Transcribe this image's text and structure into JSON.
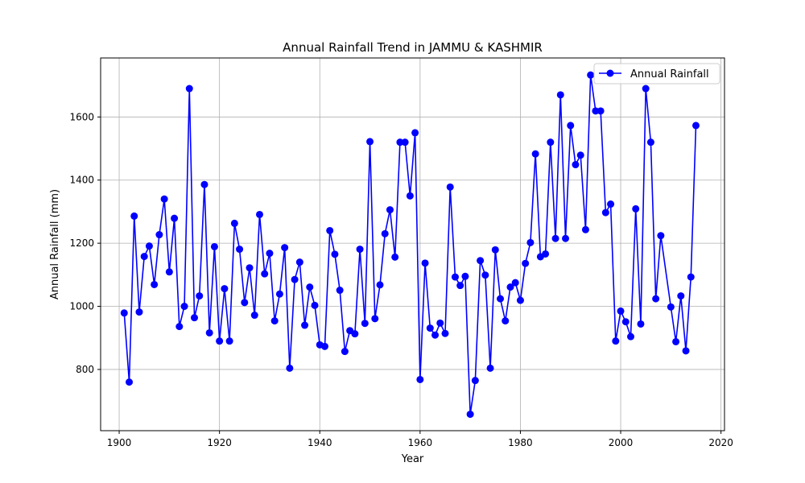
{
  "chart_data": {
    "type": "line",
    "title": "Annual Rainfall Trend in JAMMU & KASHMIR",
    "xlabel": "Year",
    "ylabel": "Annual Rainfall (mm)",
    "xlim": [
      1896.3,
      2020.7
    ],
    "ylim": [
      606,
      1787
    ],
    "xticks": [
      1900,
      1920,
      1940,
      1960,
      1980,
      2000,
      2020
    ],
    "yticks": [
      800,
      1000,
      1200,
      1400,
      1600
    ],
    "grid": true,
    "legend_position": "top-right",
    "colors": {
      "series": "#0000ff",
      "grid": "#b0b0b0",
      "axis": "#000000"
    },
    "series": [
      {
        "name": "Annual Rainfall",
        "marker": "circle",
        "x": [
          1901,
          1902,
          1903,
          1904,
          1905,
          1906,
          1907,
          1908,
          1909,
          1910,
          1911,
          1912,
          1913,
          1914,
          1915,
          1916,
          1917,
          1918,
          1919,
          1920,
          1921,
          1922,
          1923,
          1924,
          1925,
          1926,
          1927,
          1928,
          1929,
          1930,
          1931,
          1932,
          1933,
          1934,
          1935,
          1936,
          1937,
          1938,
          1939,
          1940,
          1941,
          1942,
          1943,
          1944,
          1945,
          1946,
          1947,
          1948,
          1949,
          1950,
          1951,
          1952,
          1953,
          1954,
          1955,
          1956,
          1957,
          1958,
          1959,
          1960,
          1961,
          1962,
          1963,
          1964,
          1965,
          1966,
          1967,
          1968,
          1969,
          1970,
          1971,
          1972,
          1973,
          1974,
          1975,
          1976,
          1977,
          1978,
          1979,
          1980,
          1981,
          1982,
          1983,
          1984,
          1985,
          1986,
          1987,
          1988,
          1989,
          1990,
          1991,
          1992,
          1993,
          1994,
          1995,
          1996,
          1997,
          1998,
          1999,
          2000,
          2001,
          2002,
          2003,
          2004,
          2005,
          2006,
          2007,
          2008,
          2010,
          2011,
          2012,
          2013,
          2014,
          2015
        ],
        "values": [
          979,
          760,
          1286,
          982,
          1158,
          1191,
          1069,
          1227,
          1340,
          1109,
          1279,
          936,
          1000,
          1690,
          964,
          1033,
          1386,
          916,
          1189,
          890,
          1056,
          890,
          1263,
          1181,
          1012,
          1122,
          972,
          1291,
          1103,
          1168,
          954,
          1039,
          1186,
          804,
          1085,
          1140,
          940,
          1061,
          1003,
          878,
          873,
          1240,
          1165,
          1051,
          857,
          923,
          913,
          1181,
          946,
          1522,
          961,
          1068,
          1230,
          1306,
          1156,
          1520,
          1520,
          1350,
          1550,
          768,
          1137,
          931,
          909,
          947,
          914,
          1378,
          1093,
          1066,
          1095,
          658,
          765,
          1145,
          1099,
          804,
          1179,
          1024,
          954,
          1061,
          1075,
          1019,
          1136,
          1202,
          1483,
          1157,
          1166,
          1520,
          1215,
          1670,
          1215,
          1573,
          1449,
          1479,
          1243,
          1733,
          1619,
          1619,
          1297,
          1324,
          890,
          985,
          951,
          904,
          1309,
          944,
          1690,
          1520,
          1024,
          1224,
          998,
          888,
          1033,
          859,
          1093,
          1573
        ]
      }
    ]
  }
}
